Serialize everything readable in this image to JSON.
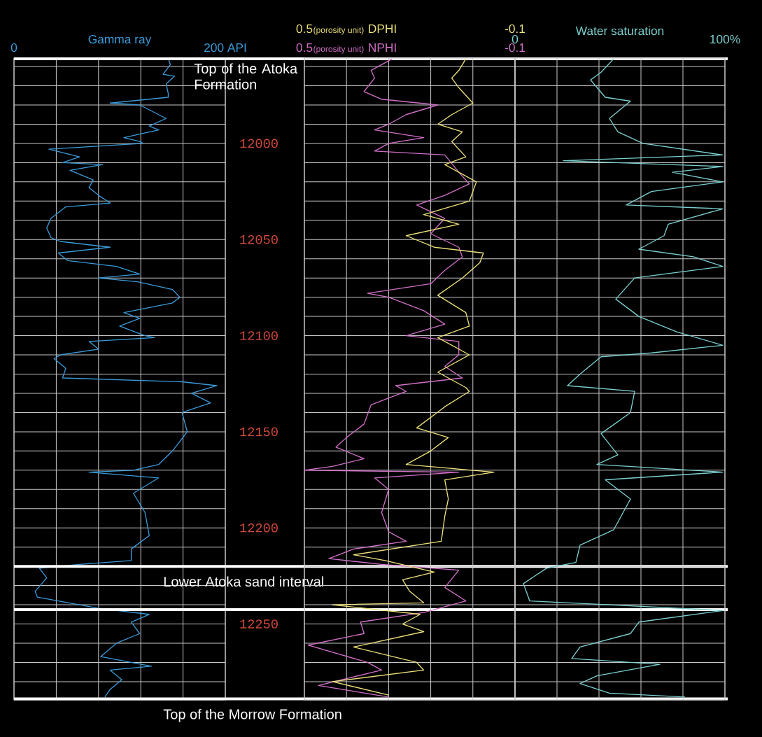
{
  "chart_data": [
    {
      "type": "line",
      "xlabel": "Gamma ray",
      "xlim": [
        0,
        200
      ],
      "xticks": [
        0,
        {
          "value": 40,
          "label": null
        },
        {
          "value": 80,
          "label": null
        },
        {
          "value": 120,
          "label": null
        },
        {
          "value": 160,
          "label": null
        },
        {
          "value": 200,
          "label": "200 API"
        }
      ],
      "ylim": [
        12289.5,
        11955.6
      ],
      "yticks": [
        {
          "value": 11960,
          "label": null
        },
        {
          "value": 11970,
          "label": null
        },
        {
          "value": 11980,
          "label": null
        },
        {
          "value": 11990,
          "label": null
        },
        12000,
        {
          "value": 12010,
          "label": null
        },
        {
          "value": 12020,
          "label": null
        },
        {
          "value": 12030,
          "label": null
        },
        {
          "value": 12040,
          "label": null
        },
        12050,
        {
          "value": 12060,
          "label": null
        },
        {
          "value": 12070,
          "label": null
        },
        {
          "value": 12080,
          "label": null
        },
        {
          "value": 12090,
          "label": null
        },
        12100,
        {
          "value": 12110,
          "label": null
        },
        {
          "value": 12120,
          "label": null
        },
        {
          "value": 12130,
          "label": null
        },
        {
          "value": 12140,
          "label": null
        },
        12150,
        {
          "value": 12160,
          "label": null
        },
        {
          "value": 12170,
          "label": null
        },
        {
          "value": 12180,
          "label": null
        },
        {
          "value": 12190,
          "label": null
        },
        12200,
        {
          "value": 12210,
          "label": null
        },
        {
          "value": 12220,
          "label": null
        },
        {
          "value": 12230,
          "label": null
        },
        {
          "value": 12240,
          "label": null
        },
        12250,
        {
          "value": 12260,
          "label": null
        },
        {
          "value": 12270,
          "label": null
        },
        {
          "value": 12280,
          "label": null
        }
      ],
      "grid": true,
      "ref_lines": [
        {
          "axis": "y",
          "value": 11956,
          "label": "Top of the Atoka Formation"
        },
        {
          "axis": "y",
          "value": 12220,
          "label": "Lower Atoka sand interval"
        },
        {
          "axis": "y",
          "value": 12242.5
        },
        {
          "axis": "y",
          "value": 12289,
          "label": "Top of the Morrow Formation"
        }
      ],
      "series": [
        {
          "color": "#3a9ad9",
          "x": [
            146,
            148,
            141,
            152,
            144,
            146,
            146,
            91,
            119,
            144,
            128,
            137,
            104,
            119,
            122,
            33,
            62,
            46,
            84,
            53,
            75,
            71,
            80,
            91,
            49,
            35,
            31,
            35,
            44,
            91,
            42,
            51,
            97,
            119,
            80,
            117,
            150,
            157,
            150,
            104,
            119,
            100,
            124,
            133,
            71,
            80,
            44,
            38,
            49,
            46,
            159,
            192,
            168,
            186,
            159,
            164,
            150,
            137,
            113,
            71,
            137,
            113,
            124,
            128,
            111,
            111,
            62,
            24,
            31,
            20,
            22,
            42,
            82,
            128,
            111,
            119,
            97,
            82,
            130,
            91,
            102,
            91,
            86
          ],
          "values": [
            11956,
            11959,
            11964,
            11965,
            11969,
            11974,
            11976,
            11979,
            11980,
            11987,
            11991,
            11993,
            11997,
            11999,
            12000,
            12003,
            12007,
            12010,
            12011,
            12014,
            12019,
            12023,
            12027,
            12031,
            12033,
            12039,
            12044,
            12049,
            12051,
            12054,
            12057,
            12061,
            12064,
            12068,
            12070,
            12072,
            12076,
            12080,
            12083,
            12088,
            12091,
            12095,
            12100,
            12101,
            12103,
            12107,
            12110,
            12112,
            12117,
            12122,
            12124,
            12126,
            12130,
            12135,
            12140,
            12150,
            12160,
            12167,
            12170,
            12171,
            12174,
            12182,
            12192,
            12204,
            12211,
            12217,
            12219,
            12221,
            12226,
            12233,
            12236,
            12238,
            12242,
            12245,
            12249,
            12255,
            12260,
            12267,
            12272,
            12274,
            12279,
            12284,
            12288
          ]
        }
      ]
    },
    {
      "type": "line",
      "xlabel": "(porosity unit)",
      "x2label": "(porosity unit)",
      "xlim": [
        0.5,
        -0.1
      ],
      "xticks": [
        0.5,
        {
          "value": 0.38,
          "label": null
        },
        {
          "value": 0.26,
          "label": null
        },
        {
          "value": 0.14,
          "label": null
        },
        {
          "value": 0.02,
          "label": null
        },
        -0.1
      ],
      "x2lim": [
        0.5,
        -0.1
      ],
      "x2ticks": [
        0.5,
        -0.1
      ],
      "ylim": [
        12289.5,
        11955.6
      ],
      "yticks": [
        {
          "value": 11960,
          "label": null
        },
        {
          "value": 11970,
          "label": null
        },
        {
          "value": 11980,
          "label": null
        },
        {
          "value": 11990,
          "label": null
        },
        12000,
        {
          "value": 12010,
          "label": null
        },
        {
          "value": 12020,
          "label": null
        },
        {
          "value": 12030,
          "label": null
        },
        {
          "value": 12040,
          "label": null
        },
        12050,
        {
          "value": 12060,
          "label": null
        },
        {
          "value": 12070,
          "label": null
        },
        {
          "value": 12080,
          "label": null
        },
        {
          "value": 12090,
          "label": null
        },
        12100,
        {
          "value": 12110,
          "label": null
        },
        {
          "value": 12120,
          "label": null
        },
        {
          "value": 12130,
          "label": null
        },
        {
          "value": 12140,
          "label": null
        },
        12150,
        {
          "value": 12160,
          "label": null
        },
        {
          "value": 12170,
          "label": null
        },
        {
          "value": 12180,
          "label": null
        },
        {
          "value": 12190,
          "label": null
        },
        12200,
        {
          "value": 12210,
          "label": null
        },
        {
          "value": 12220,
          "label": null
        },
        {
          "value": 12230,
          "label": null
        },
        {
          "value": 12240,
          "label": null
        },
        12250,
        {
          "value": 12260,
          "label": null
        },
        {
          "value": 12270,
          "label": null
        },
        {
          "value": 12280,
          "label": null
        }
      ],
      "grid": true,
      "tick_labels": "x",
      "series": [
        {
          "name": "NPHI",
          "color": "#d070c8",
          "x": [
            0.25,
            0.31,
            0.3,
            0.33,
            0.28,
            0.12,
            0.21,
            0.26,
            0.3,
            0.16,
            0.26,
            0.3,
            0.1,
            0.06,
            0.03,
            0.1,
            0.18,
            0.1,
            0.14,
            0.06,
            0.05,
            0.1,
            0.14,
            0.32,
            0.26,
            0.16,
            0.1,
            0.21,
            0.06,
            0.06,
            0.1,
            0.05,
            0.24,
            0.21,
            0.31,
            0.33,
            0.38,
            0.41,
            0.33,
            0.42,
            0.5,
            0.06,
            0.3,
            0.26,
            0.28,
            0.26,
            0.21,
            0.36,
            0.43,
            0.28,
            0.06,
            0.1,
            0.04,
            0.16,
            0.34,
            0.33,
            0.49,
            0.32,
            0.28,
            0.46,
            0.26
          ],
          "values": [
            11956,
            11962,
            11966,
            11973,
            11977,
            11980,
            11985,
            11990,
            11993,
            11997,
            12000,
            12004,
            12006,
            12015,
            12021,
            12027,
            12032,
            12039,
            12047,
            12054,
            12059,
            12066,
            12073,
            12078,
            12080,
            12087,
            12094,
            12100,
            12103,
            12110,
            12116,
            12122,
            12126,
            12129,
            12136,
            12146,
            12153,
            12158,
            12164,
            12168,
            12170,
            12171,
            12174,
            12180,
            12192,
            12202,
            12207,
            12211,
            12216,
            12219,
            12222,
            12231,
            12238,
            12244,
            12249,
            12255,
            12261,
            12270,
            12274,
            12282,
            12288
          ]
        },
        {
          "name": "DPHI",
          "axis": "x2",
          "color": "#ece07a",
          "x": [
            0.04,
            0.06,
            0.08,
            0.06,
            0.02,
            0.08,
            0.12,
            0.05,
            0.08,
            0.04,
            0.1,
            0.01,
            0.03,
            0.16,
            0.06,
            0.21,
            0.13,
            -0.01,
            0.0,
            0.05,
            0.12,
            0.04,
            0.03,
            0.12,
            0.03,
            0.12,
            0.04,
            0.03,
            0.1,
            0.18,
            0.09,
            0.14,
            0.21,
            -0.04,
            0.1,
            0.09,
            0.1,
            0.11,
            0.36,
            0.27,
            0.13,
            0.22,
            0.2,
            0.16,
            0.42,
            0.17,
            0.22,
            0.16,
            0.36,
            0.18,
            0.16,
            0.42,
            0.26
          ],
          "values": [
            11956,
            11962,
            11966,
            11971,
            11979,
            11985,
            11990,
            11994,
            11999,
            12007,
            12011,
            12020,
            12030,
            12037,
            12042,
            12048,
            12054,
            12057,
            12062,
            12070,
            12079,
            12088,
            12095,
            12101,
            12110,
            12119,
            12127,
            12129,
            12137,
            12148,
            12153,
            12160,
            12167,
            12171,
            12175,
            12185,
            12194,
            12207,
            12214,
            12217,
            12223,
            12227,
            12233,
            12239,
            12240,
            12245,
            12250,
            12254,
            12262,
            12270,
            12274,
            12280,
            12287
          ]
        }
      ]
    },
    {
      "type": "line",
      "xlabel": "Water saturation",
      "xlim": [
        0,
        100
      ],
      "xticks": [
        0,
        {
          "value": 20,
          "label": null
        },
        {
          "value": 40,
          "label": null
        },
        {
          "value": 60,
          "label": null
        },
        {
          "value": 80,
          "label": null
        },
        {
          "value": 100,
          "label": "100%"
        }
      ],
      "ylim": [
        12289.5,
        11955.6
      ],
      "yticks": [
        {
          "value": 11960,
          "label": null
        },
        {
          "value": 11970,
          "label": null
        },
        {
          "value": 11980,
          "label": null
        },
        {
          "value": 11990,
          "label": null
        },
        12000,
        {
          "value": 12010,
          "label": null
        },
        {
          "value": 12020,
          "label": null
        },
        {
          "value": 12030,
          "label": null
        },
        {
          "value": 12040,
          "label": null
        },
        12050,
        {
          "value": 12060,
          "label": null
        },
        {
          "value": 12070,
          "label": null
        },
        {
          "value": 12080,
          "label": null
        },
        {
          "value": 12090,
          "label": null
        },
        12100,
        {
          "value": 12110,
          "label": null
        },
        {
          "value": 12120,
          "label": null
        },
        {
          "value": 12130,
          "label": null
        },
        {
          "value": 12140,
          "label": null
        },
        12150,
        {
          "value": 12160,
          "label": null
        },
        {
          "value": 12170,
          "label": null
        },
        {
          "value": 12180,
          "label": null
        },
        {
          "value": 12190,
          "label": null
        },
        12200,
        {
          "value": 12210,
          "label": null
        },
        {
          "value": 12220,
          "label": null
        },
        {
          "value": 12230,
          "label": null
        },
        {
          "value": 12240,
          "label": null
        },
        12250,
        {
          "value": 12260,
          "label": null
        },
        {
          "value": 12270,
          "label": null
        },
        {
          "value": 12280,
          "label": null
        }
      ],
      "grid": true,
      "tick_labels": "x",
      "series": [
        {
          "color": "#7ccfcf",
          "x": [
            47,
            41,
            36,
            43,
            55,
            45,
            49,
            61,
            99,
            23,
            99,
            75,
            99,
            65,
            53,
            99,
            73,
            71,
            59,
            85,
            99,
            57,
            48,
            59,
            77,
            99,
            65,
            41,
            31,
            25,
            57,
            55,
            41,
            49,
            39,
            99,
            43,
            55,
            47,
            31,
            29,
            15,
            4,
            7,
            45,
            99,
            59,
            55,
            31,
            27,
            69,
            39,
            31,
            45,
            81
          ],
          "values": [
            11956,
            11963,
            11967,
            11976,
            11978,
            11987,
            11994,
            12000,
            12006,
            12009,
            12012,
            12015,
            12020,
            12025,
            12032,
            12034,
            12042,
            12048,
            12055,
            12059,
            12064,
            12070,
            12081,
            12090,
            12098,
            12105,
            12109,
            12111,
            12120,
            12126,
            12129,
            12140,
            12151,
            12162,
            12167,
            12171,
            12175,
            12185,
            12201,
            12209,
            12218,
            12221,
            12229,
            12238,
            12240,
            12243,
            12249,
            12255,
            12262,
            12268,
            12271,
            12277,
            12281,
            12286,
            12288
          ]
        }
      ]
    }
  ]
}
